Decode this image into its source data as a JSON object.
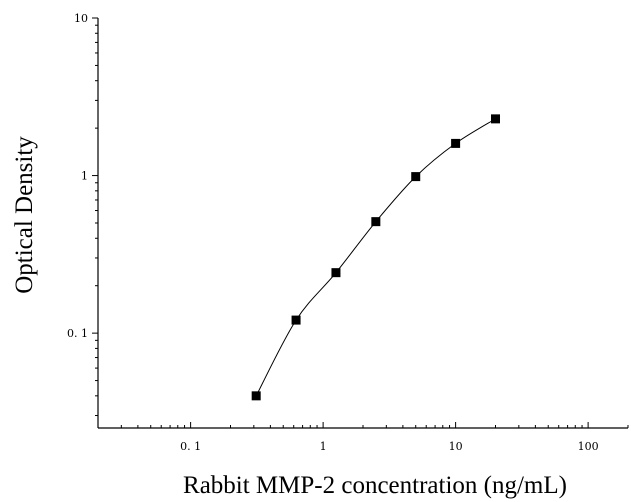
{
  "chart_data": {
    "type": "scatter",
    "title": "",
    "xlabel": "Rabbit MMP-2 concentration (ng/mL)",
    "ylabel": "Optical Density",
    "x_scale": "log",
    "y_scale": "log",
    "xlim": [
      0.02,
      200
    ],
    "ylim": [
      0.025,
      10
    ],
    "x_ticks": [
      {
        "value": 0.1,
        "label": "0. 1"
      },
      {
        "value": 1,
        "label": "1"
      },
      {
        "value": 10,
        "label": "10"
      },
      {
        "value": 100,
        "label": "100"
      }
    ],
    "y_ticks": [
      {
        "value": 0.1,
        "label": "0. 1"
      },
      {
        "value": 1,
        "label": "1"
      },
      {
        "value": 10,
        "label": "10"
      }
    ],
    "grid": false,
    "legend": "none",
    "series": [
      {
        "marker": "square",
        "color": "#000000",
        "x": [
          0.3125,
          0.625,
          1.25,
          2.5,
          5,
          10,
          20
        ],
        "y": [
          0.04,
          0.121,
          0.242,
          0.51,
          0.985,
          1.6,
          2.29
        ]
      }
    ],
    "fit_curve": {
      "color": "#000000",
      "style": "solid smooth curve through points"
    }
  }
}
